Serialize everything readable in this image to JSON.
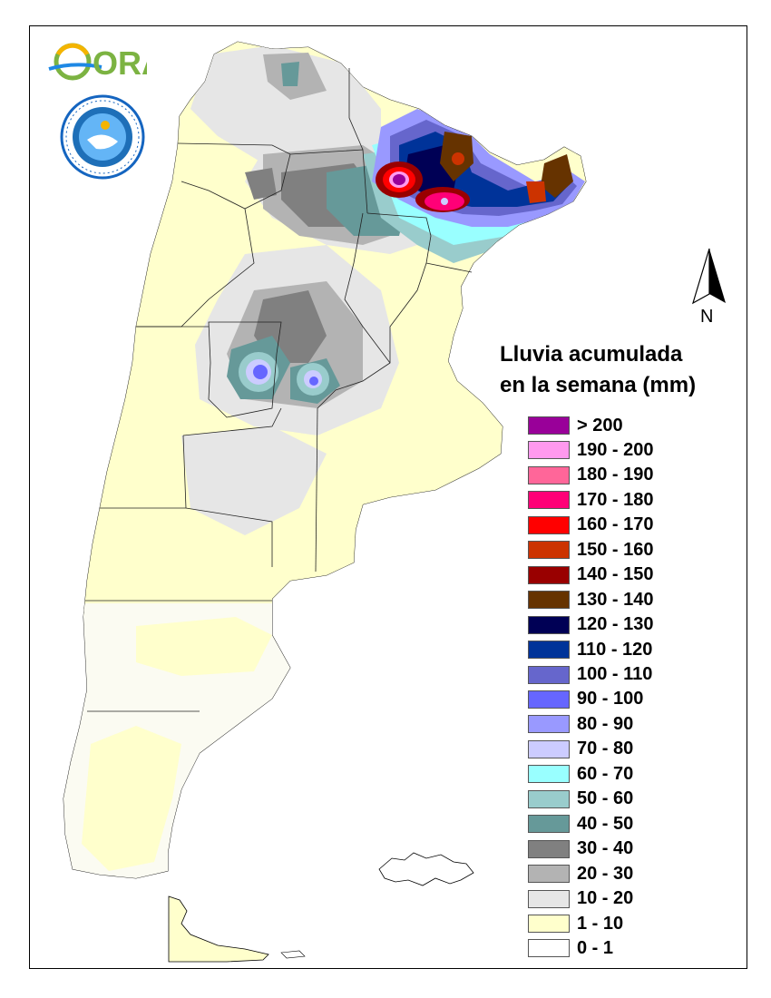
{
  "legend": {
    "title_line1": "Lluvia acumulada",
    "title_line2": "en la semana (mm)",
    "classes": [
      {
        "label": "> 200",
        "color": "#990099"
      },
      {
        "label": "190 - 200",
        "color": "#ff99ee"
      },
      {
        "label": "180 - 190",
        "color": "#ff6699"
      },
      {
        "label": "170 - 180",
        "color": "#ff0077"
      },
      {
        "label": "160 - 170",
        "color": "#ff0000"
      },
      {
        "label": "150 - 160",
        "color": "#cc3300"
      },
      {
        "label": "140 - 150",
        "color": "#990000"
      },
      {
        "label": "130 - 140",
        "color": "#663300"
      },
      {
        "label": "120 - 130",
        "color": "#000055"
      },
      {
        "label": "110 - 120",
        "color": "#003399"
      },
      {
        "label": "100 - 110",
        "color": "#6666cc"
      },
      {
        "label": "90 - 100",
        "color": "#6666ff"
      },
      {
        "label": "80 - 90",
        "color": "#9999ff"
      },
      {
        "label": "70 - 80",
        "color": "#ccccff"
      },
      {
        "label": "60 - 70",
        "color": "#99ffff"
      },
      {
        "label": "50 - 60",
        "color": "#99cccc"
      },
      {
        "label": "40 - 50",
        "color": "#669999"
      },
      {
        "label": "30 - 40",
        "color": "#808080"
      },
      {
        "label": "20 - 30",
        "color": "#b3b3b3"
      },
      {
        "label": "10 - 20",
        "color": "#e6e6e6"
      },
      {
        "label": "1 - 10",
        "color": "#ffffcc"
      },
      {
        "label": "0 - 1",
        "color": "#ffffff"
      }
    ]
  },
  "north_arrow": {
    "label": "N"
  },
  "logos": {
    "ora": {
      "text": "ORA",
      "color": "#7cb342"
    },
    "smn": {
      "text": "SERVICIO METEOROLOGICO NACIONAL · ARGENTINA"
    }
  }
}
